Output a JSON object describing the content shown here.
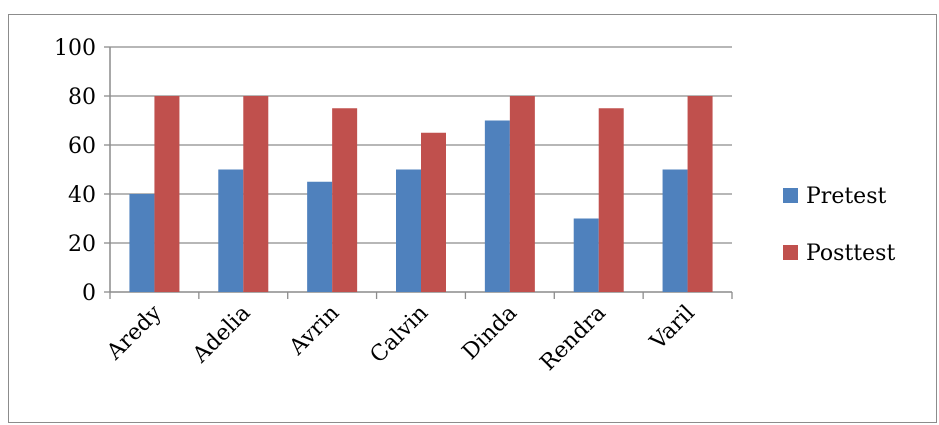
{
  "chart_data": {
    "type": "bar",
    "categories": [
      "Aredy",
      "Adelia",
      "Avrin",
      "Calvin",
      "Dinda",
      "Rendra",
      "Varil"
    ],
    "series": [
      {
        "name": "Pretest",
        "values": [
          40,
          50,
          45,
          50,
          70,
          30,
          50
        ],
        "color": "#4f81bd"
      },
      {
        "name": "Posttest",
        "values": [
          80,
          80,
          75,
          65,
          80,
          75,
          80
        ],
        "color": "#c0504d"
      }
    ],
    "title": "",
    "xlabel": "",
    "ylabel": "",
    "ylim": [
      0,
      100
    ],
    "yticks": [
      0,
      20,
      40,
      60,
      80,
      100
    ],
    "grid": true,
    "legend_position": "right"
  },
  "colors": {
    "gridline": "#8c8c8c",
    "axis": "#8c8c8c",
    "border": "#8c8c8c"
  }
}
